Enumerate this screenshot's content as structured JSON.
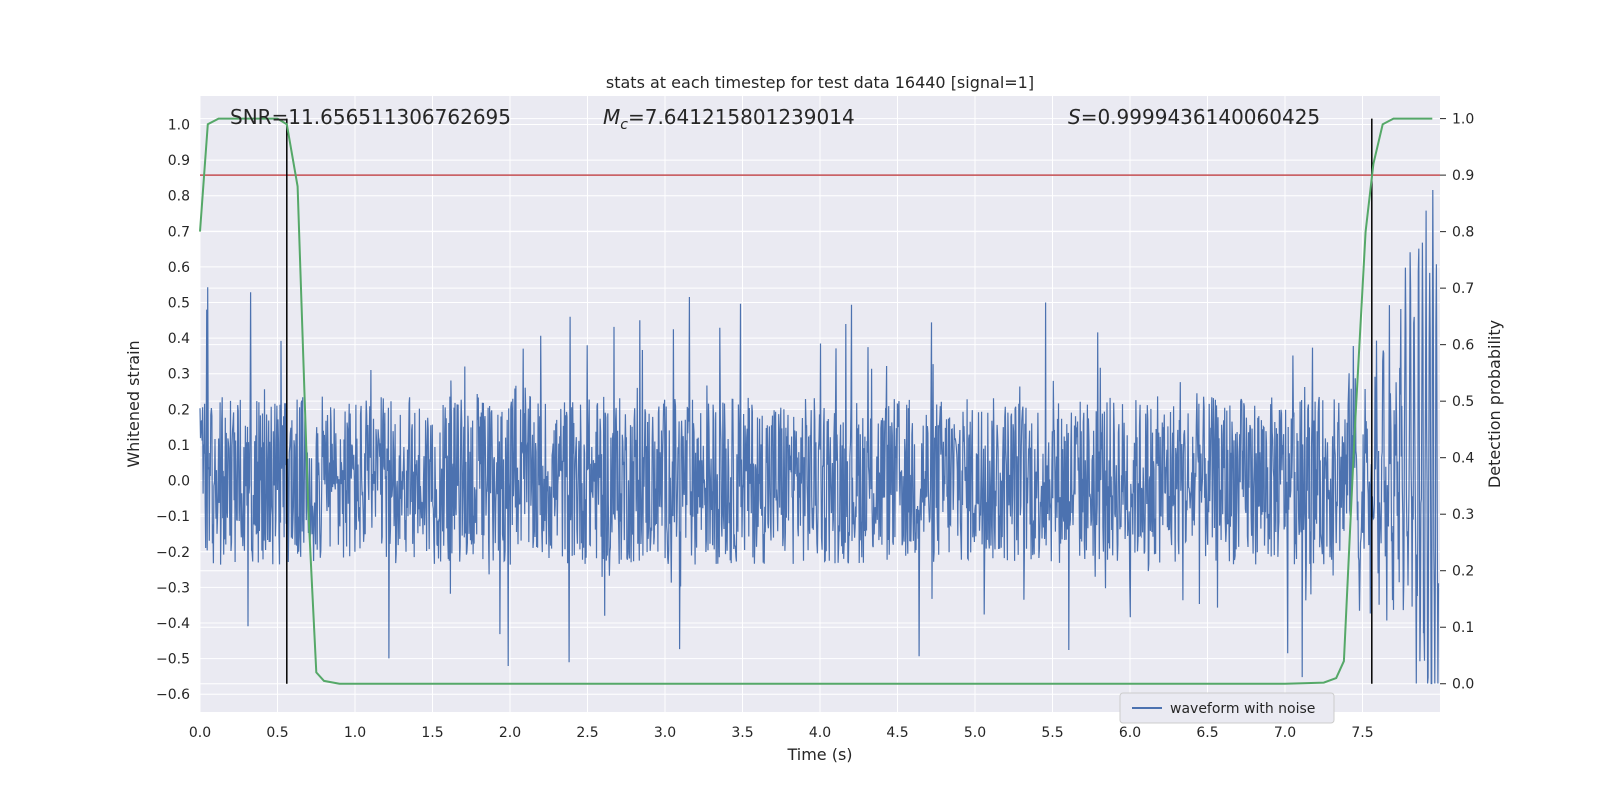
{
  "chart_data": {
    "type": "line",
    "title": "stats at each timestep for test data 16440 [signal=1]",
    "xlabel": "Time (s)",
    "ylabel": "Whitened strain",
    "y2label": "Detection probability",
    "xlim": [
      0.0,
      8.0
    ],
    "ylim": [
      -0.65,
      1.08
    ],
    "y2lim": [
      -0.05,
      1.04
    ],
    "x_ticks": [
      "0.0",
      "0.5",
      "1.0",
      "1.5",
      "2.0",
      "2.5",
      "3.0",
      "3.5",
      "4.0",
      "4.5",
      "5.0",
      "5.5",
      "6.0",
      "6.5",
      "7.0",
      "7.5"
    ],
    "x_tick_values": [
      0.0,
      0.5,
      1.0,
      1.5,
      2.0,
      2.5,
      3.0,
      3.5,
      4.0,
      4.5,
      5.0,
      5.5,
      6.0,
      6.5,
      7.0,
      7.5
    ],
    "y_ticks": [
      "1.0",
      "0.9",
      "0.8",
      "0.7",
      "0.6",
      "0.5",
      "0.4",
      "0.3",
      "0.2",
      "0.1",
      "0.0",
      "−0.1",
      "−0.2",
      "−0.3",
      "−0.4",
      "−0.5",
      "−0.6"
    ],
    "y_tick_values": [
      1.0,
      0.9,
      0.8,
      0.7,
      0.6,
      0.5,
      0.4,
      0.3,
      0.2,
      0.1,
      0.0,
      -0.1,
      -0.2,
      -0.3,
      -0.4,
      -0.5,
      -0.6
    ],
    "y2_ticks": [
      "1.0",
      "0.9",
      "0.8",
      "0.7",
      "0.6",
      "0.5",
      "0.4",
      "0.3",
      "0.2",
      "0.1",
      "0.0"
    ],
    "y2_tick_values": [
      1.0,
      0.9,
      0.8,
      0.7,
      0.6,
      0.5,
      0.4,
      0.3,
      0.2,
      0.1,
      0.0
    ],
    "annotations": {
      "snr": "SNR=11.656511306762695",
      "mc_symbol": "M",
      "mc_subscript": "c",
      "mc_value": "=7.641215801239014",
      "s_symbol": "S",
      "s_value": "=0.9999436140060425"
    },
    "legend": {
      "label": "waveform with noise",
      "placement": "lower-right"
    },
    "grid": true,
    "threshold": {
      "value": 0.9,
      "axis": "right",
      "color": "#c44e52"
    },
    "vlines": [
      0.56,
      7.56
    ],
    "waveform": {
      "name": "waveform with noise",
      "color": "#4c72b0",
      "x_range": [
        0.0,
        7.99
      ],
      "noise_envelope": [
        -0.23,
        0.22
      ],
      "peak_min": -0.57,
      "peak_max": 1.0,
      "chirp_start": 7.4
    },
    "probability": {
      "color": "#55a868",
      "x": [
        0.0,
        0.05,
        0.12,
        0.3,
        0.5,
        0.56,
        0.63,
        0.7,
        0.75,
        0.8,
        0.9,
        1.0,
        3.0,
        5.0,
        7.0,
        7.25,
        7.33,
        7.38,
        7.45,
        7.52,
        7.57,
        7.63,
        7.7,
        7.8,
        7.95
      ],
      "y": [
        0.8,
        0.99,
        1.0,
        1.0,
        1.0,
        0.99,
        0.88,
        0.3,
        0.02,
        0.005,
        0.0,
        0.0,
        0.0,
        0.0,
        0.0,
        0.002,
        0.01,
        0.04,
        0.45,
        0.8,
        0.92,
        0.99,
        1.0,
        1.0,
        1.0
      ]
    },
    "colors": {
      "plot_background": "#eaeaf2",
      "grid": "#ffffff",
      "waveform": "#4c72b0",
      "probability": "#55a868",
      "threshold": "#c44e52",
      "vline": "#000000"
    }
  }
}
